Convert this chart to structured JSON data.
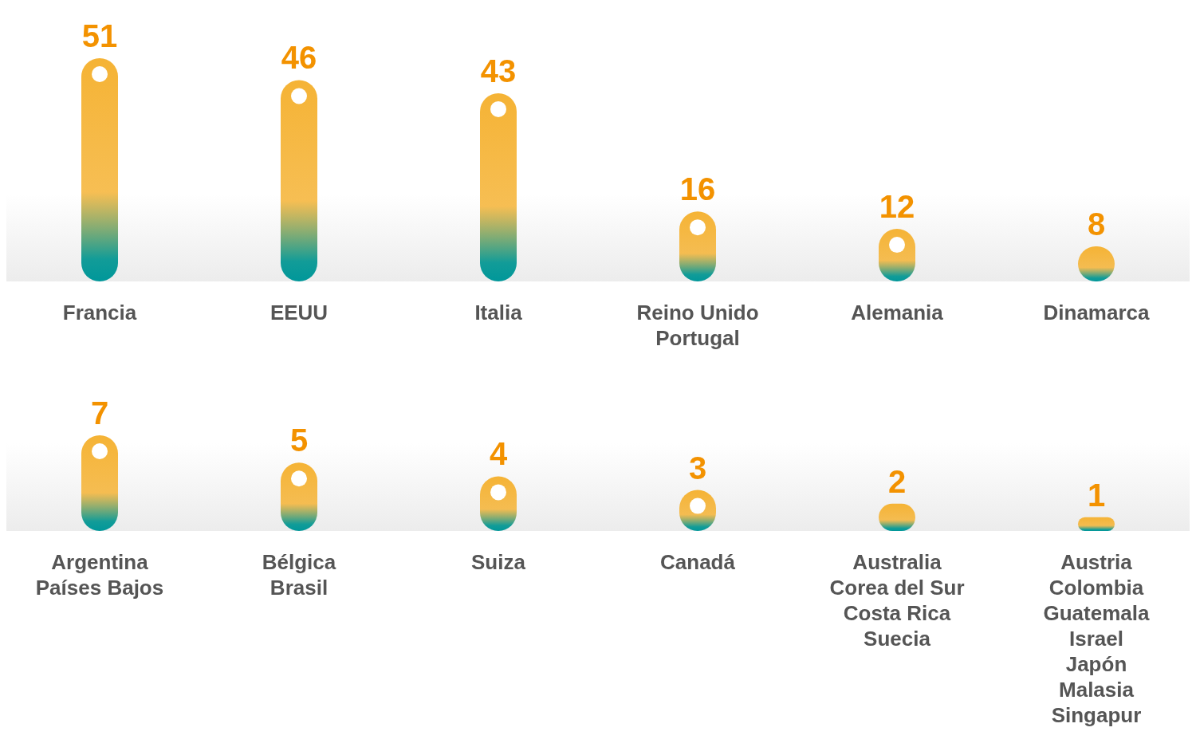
{
  "chart_data": [
    {
      "type": "bar",
      "categories": [
        "Francia",
        "EEUU",
        "Italia",
        "Reino Unido\nPortugal",
        "Alemania",
        "Dinamarca"
      ],
      "values": [
        51,
        46,
        43,
        16,
        12,
        8
      ],
      "color": "#f5b335",
      "data_labels": true
    },
    {
      "type": "bar",
      "categories": [
        "Argentina\nPaíses Bajos",
        "Bélgica\nBrasil",
        "Suiza",
        "Canadá",
        "Australia\nCorea del Sur\nCosta Rica\nSuecia",
        "Austria\nColombia\nGuatemala\nIsrael\nJapón\nMalasia\nSingapur"
      ],
      "values": [
        7,
        5,
        4,
        3,
        2,
        1
      ],
      "color": "#f5b335",
      "data_labels": true
    }
  ]
}
